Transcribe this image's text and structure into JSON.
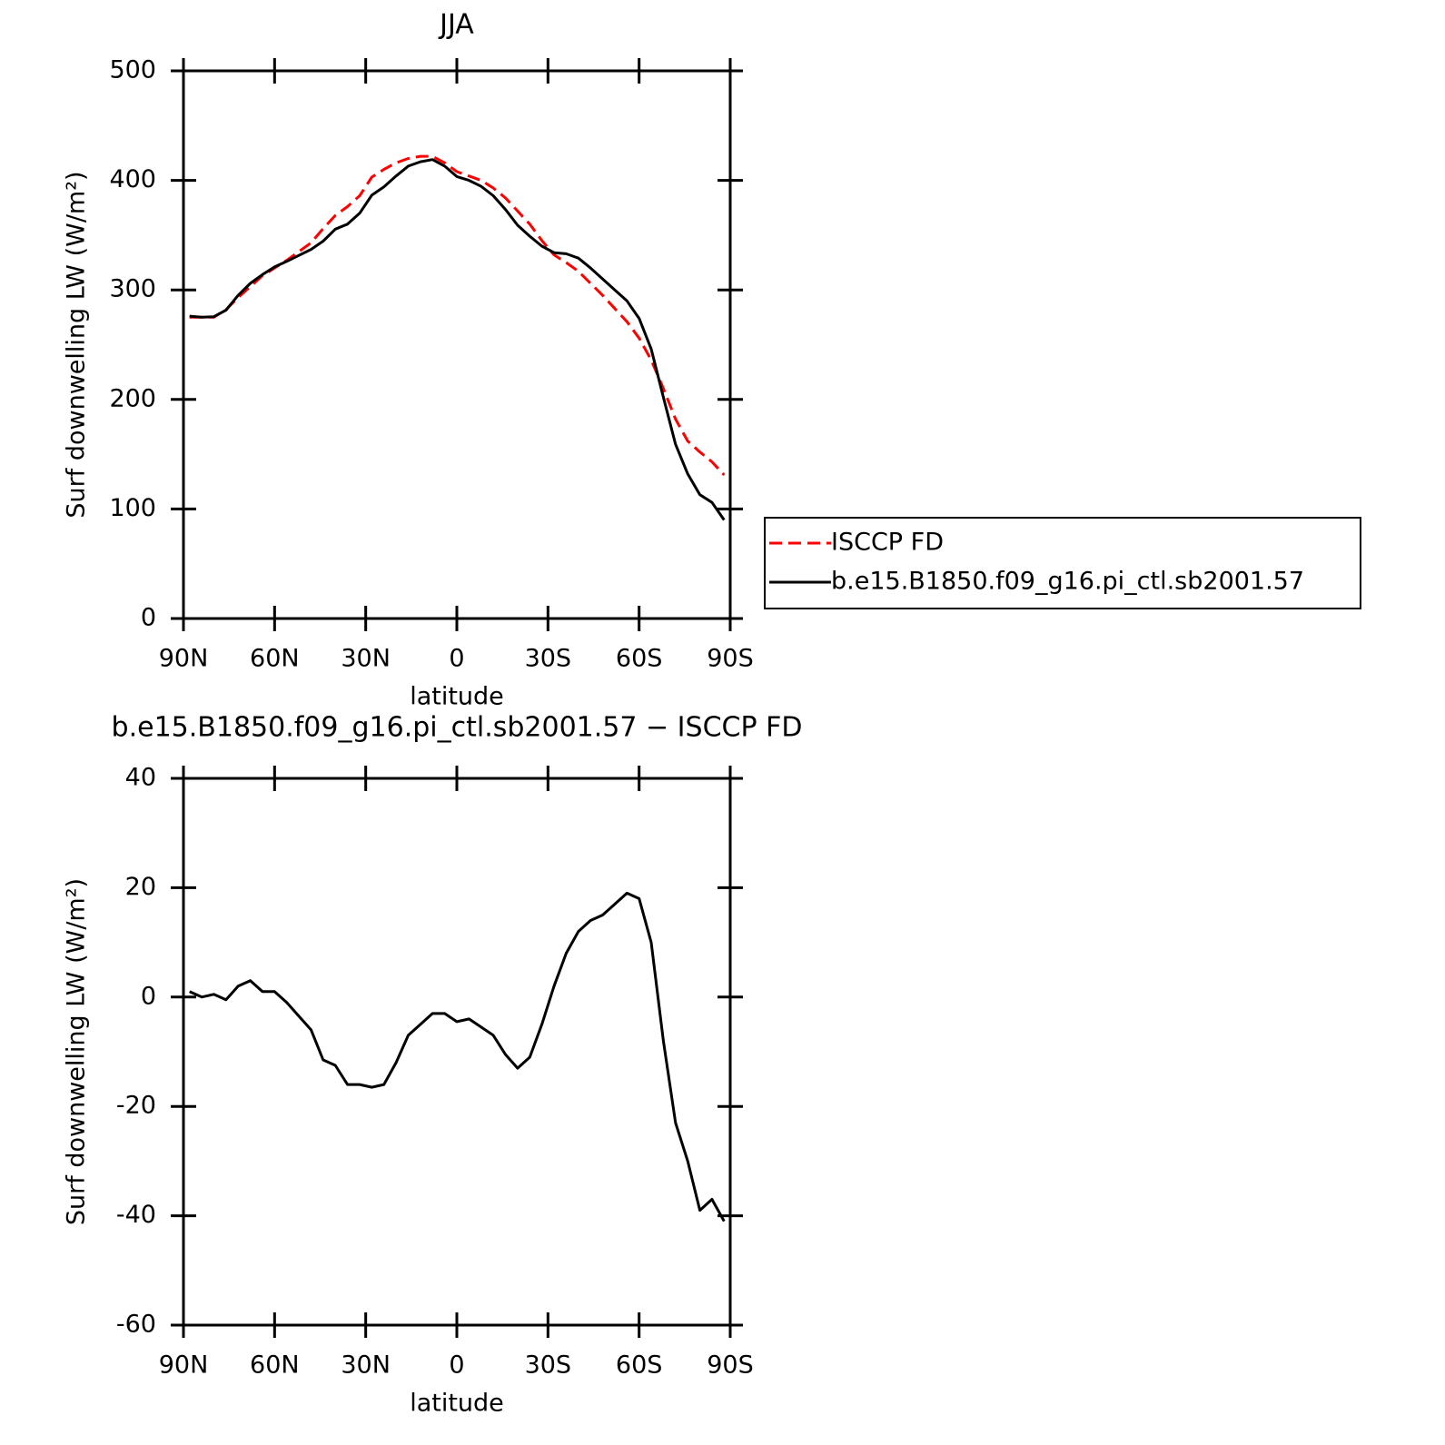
{
  "chart_data": [
    {
      "type": "line",
      "title": "JJA",
      "xlabel": "latitude",
      "ylabel": "Surf downwelling LW (W/m²)",
      "x": [
        88,
        84,
        80,
        76,
        72,
        68,
        64,
        60,
        56,
        52,
        48,
        44,
        40,
        36,
        32,
        28,
        24,
        20,
        16,
        12,
        8,
        4,
        0,
        -4,
        -8,
        -12,
        -16,
        -20,
        -24,
        -28,
        -32,
        -36,
        -40,
        -44,
        -48,
        -52,
        -56,
        -60,
        -64,
        -68,
        -72,
        -76,
        -80,
        -84,
        -88
      ],
      "series": [
        {
          "name": "ISCCP FD",
          "color": "#ff0000",
          "line_style": "dashed",
          "values": [
            275,
            275,
            275,
            282,
            293,
            303,
            313,
            320,
            327,
            335,
            343,
            356,
            368,
            376,
            386,
            403,
            410,
            416,
            420,
            422,
            422,
            416,
            408,
            404,
            400,
            393,
            384,
            372,
            360,
            345,
            332,
            325,
            317,
            306,
            295,
            283,
            271,
            256,
            236,
            210,
            182,
            162,
            152,
            143,
            131
          ]
        },
        {
          "name": "b.e15.B1850.f09_g16.pi_ctl.sb2001.57",
          "color": "#000000",
          "line_style": "solid",
          "values": [
            276,
            275,
            275.5,
            281.5,
            295,
            306,
            314,
            321,
            326,
            331.5,
            337,
            344.5,
            355.5,
            360,
            370,
            386.5,
            394,
            404,
            413,
            417,
            419,
            413,
            403.5,
            400,
            394.5,
            386,
            373.5,
            359,
            349,
            340,
            334,
            333,
            329,
            320,
            310,
            300,
            290,
            274,
            246,
            202,
            159,
            132,
            113,
            106,
            90
          ]
        }
      ],
      "xlim": [
        90,
        -90
      ],
      "xticks": [
        {
          "value": 90,
          "label": "90N"
        },
        {
          "value": 60,
          "label": "60N"
        },
        {
          "value": 30,
          "label": "30N"
        },
        0,
        {
          "value": -30,
          "label": "30S"
        },
        {
          "value": -60,
          "label": "60S"
        },
        {
          "value": -90,
          "label": "90S"
        }
      ],
      "ylim": [
        0,
        500
      ],
      "yticks": [
        0,
        100,
        200,
        300,
        400,
        500
      ],
      "legend": "right"
    },
    {
      "type": "line",
      "title": "b.e15.B1850.f09_g16.pi_ctl.sb2001.57 − ISCCP FD",
      "xlabel": "latitude",
      "ylabel": "Surf downwelling LW (W/m²)",
      "x": [
        88,
        84,
        80,
        76,
        72,
        68,
        64,
        60,
        56,
        52,
        48,
        44,
        40,
        36,
        32,
        28,
        24,
        20,
        16,
        12,
        8,
        4,
        0,
        -4,
        -8,
        -12,
        -16,
        -20,
        -24,
        -28,
        -32,
        -36,
        -40,
        -44,
        -48,
        -52,
        -56,
        -60,
        -64,
        -68,
        -72,
        -76,
        -80,
        -84,
        -88
      ],
      "color": "#000000",
      "values": [
        1,
        0,
        0.5,
        -0.5,
        2,
        3,
        1,
        1,
        -1,
        -3.5,
        -6,
        -11.5,
        -12.5,
        -16,
        -16,
        -16.5,
        -16,
        -12,
        -7,
        -5,
        -3,
        -3,
        -4.5,
        -4,
        -5.5,
        -7,
        -10.5,
        -13,
        -11,
        -5,
        2,
        8,
        12,
        14,
        15,
        17,
        19,
        18,
        10,
        -8,
        -23,
        -30,
        -39,
        -37,
        -41
      ],
      "xlim": [
        90,
        -90
      ],
      "xticks": [
        {
          "value": 90,
          "label": "90N"
        },
        {
          "value": 60,
          "label": "60N"
        },
        {
          "value": 30,
          "label": "30N"
        },
        0,
        {
          "value": -30,
          "label": "30S"
        },
        {
          "value": -60,
          "label": "60S"
        },
        {
          "value": -90,
          "label": "90S"
        }
      ],
      "ylim": [
        -60,
        40
      ],
      "yticks": [
        -60,
        -40,
        -20,
        0,
        20,
        40
      ]
    }
  ]
}
